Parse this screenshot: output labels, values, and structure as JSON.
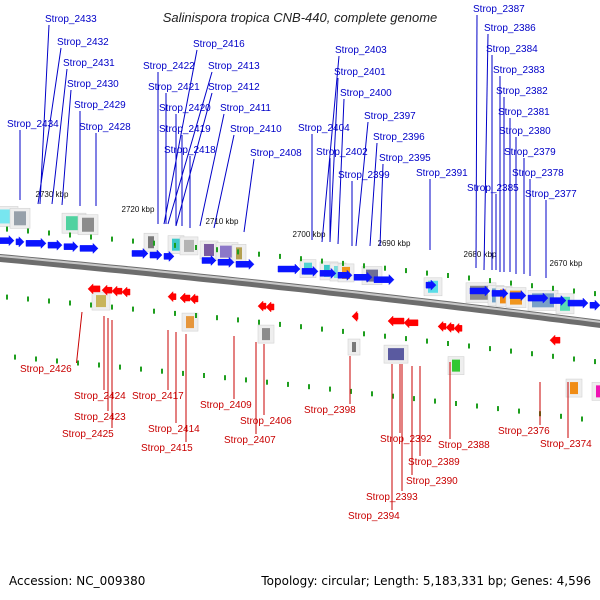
{
  "title": "Salinispora tropica CNB-440, complete genome",
  "footer": {
    "accession": "Accession: NC_009380",
    "topology": "Topology: circular; Length: 5,183,331 bp; Genes: 4,596"
  },
  "colors": {
    "plus_strand": "#0a14ff",
    "minus_strand": "#ff0000",
    "label_plus": "#0000c8",
    "label_minus": "#c80000",
    "backbone": "#8a8a8a",
    "tick": "#1e9e1e"
  },
  "scale_labels": [
    "2730 kbp",
    "2720 kbp",
    "2710 kbp",
    "2700 kbp",
    "2690 kbp",
    "2680 kbp",
    "2670 kbp"
  ],
  "plus_strand_genes": [
    "Strop_2433",
    "Strop_2432",
    "Strop_2431",
    "Strop_2430",
    "Strop_2429",
    "Strop_2428",
    "Strop_2434",
    "Strop_2416",
    "Strop_2422",
    "Strop_2413",
    "Strop_2421",
    "Strop_2412",
    "Strop_2420",
    "Strop_2411",
    "Strop_2419",
    "Strop_2410",
    "Strop_2418",
    "Strop_2408",
    "Strop_2403",
    "Strop_2401",
    "Strop_2400",
    "Strop_2397",
    "Strop_2404",
    "Strop_2396",
    "Strop_2402",
    "Strop_2395",
    "Strop_2399",
    "Strop_2391",
    "Strop_2387",
    "Strop_2386",
    "Strop_2384",
    "Strop_2383",
    "Strop_2382",
    "Strop_2381",
    "Strop_2380",
    "Strop_2379",
    "Strop_2378",
    "Strop_2385",
    "Strop_2377"
  ],
  "minus_strand_genes": [
    "Strop_2426",
    "Strop_2424",
    "Strop_2423",
    "Strop_2425",
    "Strop_2417",
    "Strop_2414",
    "Strop_2415",
    "Strop_2409",
    "Strop_2406",
    "Strop_2407",
    "Strop_2398",
    "Strop_2392",
    "Strop_2388",
    "Strop_2389",
    "Strop_2390",
    "Strop_2393",
    "Strop_2394",
    "Strop_2376",
    "Strop_2374"
  ]
}
